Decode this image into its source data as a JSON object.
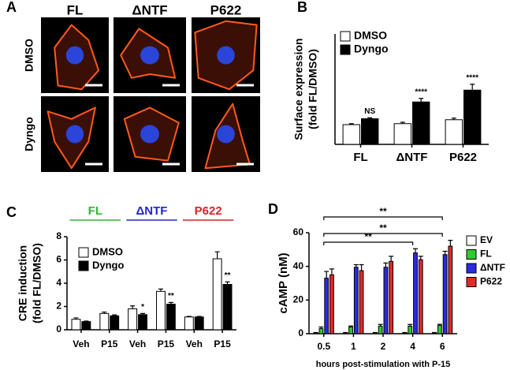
{
  "panel_labels": [
    "A",
    "B",
    "C",
    "D"
  ],
  "panel_a": {
    "columns": [
      "FL",
      "ΔNTF",
      "P622"
    ],
    "rows": [
      "DMSO",
      "Dyngo"
    ]
  },
  "chart_data": [
    {
      "type": "bar",
      "y_label": [
        "Surface expression",
        "(fold FL/DMSO)"
      ],
      "categories": [
        "FL",
        "ΔNTF",
        "P622"
      ],
      "ylim": [
        0,
        5.6
      ],
      "series": [
        {
          "name": "DMSO",
          "color": "#ffffff",
          "values": [
            1.0,
            1.05,
            1.25
          ],
          "errors": [
            0.05,
            0.07,
            0.08
          ]
        },
        {
          "name": "Dyngo",
          "color": "#000000",
          "values": [
            1.3,
            2.15,
            2.75
          ],
          "errors": [
            0.05,
            0.18,
            0.3
          ],
          "annotations": [
            "NS",
            "****",
            "****"
          ]
        }
      ]
    },
    {
      "type": "bar",
      "y_label": [
        "CRE induction",
        "(fold FL/DMSO)"
      ],
      "groups": [
        {
          "name": "FL",
          "color": "#2db82d"
        },
        {
          "name": "ΔNTF",
          "color": "#2323d6"
        },
        {
          "name": "P622",
          "color": "#d62323"
        }
      ],
      "categories": [
        "Veh",
        "P15",
        "Veh",
        "P15",
        "Veh",
        "P15"
      ],
      "ylim": [
        0,
        8
      ],
      "yticks": [
        0,
        2,
        4,
        6,
        8
      ],
      "series": [
        {
          "name": "DMSO",
          "color": "#ffffff",
          "values": [
            0.9,
            1.4,
            1.8,
            3.3,
            1.1,
            6.1
          ],
          "errors": [
            0.12,
            0.12,
            0.25,
            0.2,
            0.05,
            0.6
          ]
        },
        {
          "name": "Dyngo",
          "color": "#000000",
          "values": [
            0.7,
            1.2,
            1.3,
            2.2,
            1.1,
            3.9
          ],
          "errors": [
            0.05,
            0.08,
            0.1,
            0.15,
            0.05,
            0.22
          ],
          "annotations": [
            null,
            null,
            "*",
            "**",
            null,
            "**"
          ]
        }
      ]
    },
    {
      "type": "bar",
      "y_label": [
        "cAMP (nM)"
      ],
      "x_label": "hours post-stimulation with P-15",
      "categories": [
        "0.5",
        "1",
        "2",
        "4",
        "6"
      ],
      "ylim": [
        0,
        60
      ],
      "yticks": [
        0,
        20,
        40,
        60
      ],
      "series": [
        {
          "name": "EV",
          "color": "#ffffff",
          "values": [
            0.5,
            0.5,
            0.5,
            0.5,
            0.5
          ],
          "errors": [
            0.2,
            0.2,
            0.2,
            0.2,
            0.2
          ]
        },
        {
          "name": "FL",
          "color": "#2ecc2e",
          "values": [
            3,
            4,
            4.5,
            4.5,
            5
          ],
          "errors": [
            1,
            0.6,
            1,
            1,
            0.6
          ]
        },
        {
          "name": "ΔNTF",
          "color": "#2a2ae0",
          "values": [
            33,
            39.5,
            39.5,
            48,
            47
          ],
          "errors": [
            4,
            1.5,
            2.5,
            2.5,
            2
          ]
        },
        {
          "name": "P622",
          "color": "#e02a2a",
          "values": [
            35,
            37.5,
            43,
            44,
            52
          ],
          "errors": [
            3.5,
            3.5,
            3,
            2,
            3.5
          ]
        }
      ],
      "brackets": [
        {
          "from": "0.5",
          "to": "6",
          "label": "**"
        },
        {
          "from": "0.5",
          "to": "6",
          "label": "**"
        },
        {
          "from": "0.5",
          "to": "4",
          "label": "**"
        }
      ]
    }
  ]
}
